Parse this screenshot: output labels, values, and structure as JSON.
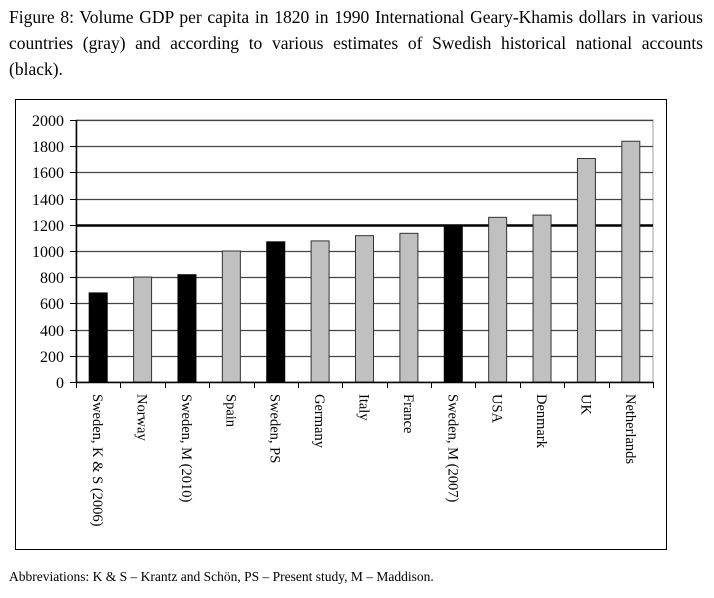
{
  "caption": "Figure 8: Volume GDP per capita in 1820 in 1990 International Geary-Khamis dollars in various countries (gray) and according to various estimates of Swedish historical national accounts (black).",
  "footnote": "Abbreviations: K & S – Krantz and Schön, PS – Present study, M – Maddison.",
  "colors": {
    "country_bar": "#c0c0c0",
    "sweden_bar": "#000000",
    "gridline": "#000000",
    "plot_border": "#c0c0c0"
  },
  "chart_data": {
    "type": "bar",
    "title": "",
    "xlabel": "",
    "ylabel": "",
    "ylim": [
      0,
      2000
    ],
    "yticks": [
      0,
      200,
      400,
      600,
      800,
      1000,
      1200,
      1400,
      1600,
      1800,
      2000
    ],
    "highlight_gridline": 1200,
    "grid": true,
    "legend": "none",
    "categories": [
      "Sweden, K & S (2006)",
      "Norway",
      "Sweden, M (2010)",
      "Spain",
      "Sweden, PS",
      "Germany",
      "Italy",
      "France",
      "Sweden, M (2007)",
      "USA",
      "Denmark",
      "UK",
      "Netherlands"
    ],
    "values": [
      680,
      801,
      819,
      1000,
      1070,
      1077,
      1117,
      1135,
      1198,
      1257,
      1274,
      1706,
      1838
    ],
    "groups": [
      "sweden",
      "country",
      "sweden",
      "country",
      "sweden",
      "country",
      "country",
      "country",
      "sweden",
      "country",
      "country",
      "country",
      "country"
    ]
  }
}
